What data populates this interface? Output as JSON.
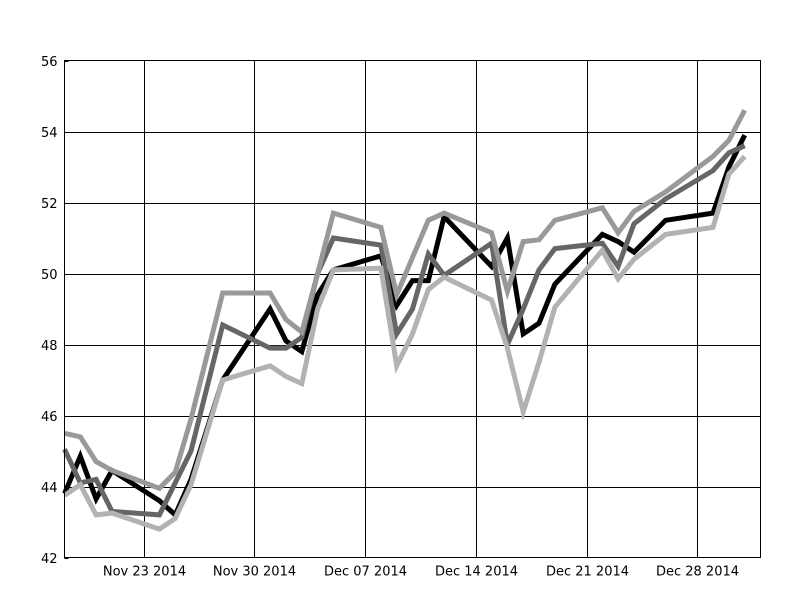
{
  "chart_data": {
    "type": "line",
    "title": "",
    "xlabel": "",
    "ylabel": "",
    "ylim": [
      42,
      56
    ],
    "xlim": [
      "2014-11-18",
      "2015-01-01"
    ],
    "grid": true,
    "legend": "none",
    "yticks": [
      42,
      44,
      46,
      48,
      50,
      52,
      54,
      56
    ],
    "xticks": [
      {
        "date": "2014-11-23",
        "label": "Nov 23 2014"
      },
      {
        "date": "2014-11-30",
        "label": "Nov 30 2014"
      },
      {
        "date": "2014-12-07",
        "label": "Dec 07 2014"
      },
      {
        "date": "2014-12-14",
        "label": "Dec 14 2014"
      },
      {
        "date": "2014-12-21",
        "label": "Dec 21 2014"
      },
      {
        "date": "2014-12-28",
        "label": "Dec 28 2014"
      }
    ],
    "x": [
      "2014-11-18",
      "2014-11-19",
      "2014-11-20",
      "2014-11-21",
      "2014-11-24",
      "2014-11-25",
      "2014-11-26",
      "2014-11-28",
      "2014-12-01",
      "2014-12-02",
      "2014-12-03",
      "2014-12-04",
      "2014-12-05",
      "2014-12-08",
      "2014-12-09",
      "2014-12-10",
      "2014-12-11",
      "2014-12-12",
      "2014-12-15",
      "2014-12-16",
      "2014-12-17",
      "2014-12-18",
      "2014-12-19",
      "2014-12-22",
      "2014-12-23",
      "2014-12-24",
      "2014-12-26",
      "2014-12-29",
      "2014-12-30",
      "2014-12-31"
    ],
    "series": [
      {
        "color": "#000000",
        "values": [
          43.8,
          44.85,
          43.65,
          44.45,
          43.6,
          43.2,
          44.2,
          47.0,
          49.0,
          48.1,
          47.8,
          49.4,
          50.1,
          50.5,
          49.1,
          49.8,
          49.8,
          51.6,
          50.2,
          51.0,
          48.3,
          48.6,
          49.7,
          51.1,
          50.9,
          50.6,
          51.5,
          51.7,
          53.0,
          53.9
        ]
      },
      {
        "color": "#666666",
        "values": [
          45.05,
          44.1,
          44.2,
          43.3,
          43.2,
          44.1,
          45.0,
          48.55,
          47.9,
          47.9,
          48.2,
          50.0,
          51.0,
          50.8,
          48.3,
          49.0,
          50.55,
          49.95,
          50.85,
          48.0,
          49.0,
          50.1,
          50.7,
          50.85,
          50.2,
          51.4,
          52.1,
          52.9,
          53.4,
          53.6
        ]
      },
      {
        "color": "#999999",
        "values": [
          45.5,
          45.4,
          44.7,
          44.45,
          43.95,
          44.4,
          45.9,
          49.45,
          49.45,
          48.7,
          48.35,
          50.0,
          51.7,
          51.3,
          49.4,
          50.45,
          51.5,
          51.7,
          51.15,
          49.5,
          50.9,
          50.95,
          51.5,
          51.85,
          51.15,
          51.75,
          52.3,
          53.3,
          53.75,
          54.6
        ]
      },
      {
        "color": "#b2b2b2",
        "values": [
          43.75,
          44.05,
          43.2,
          43.25,
          42.8,
          43.1,
          44.05,
          47.0,
          47.4,
          47.1,
          46.9,
          49.0,
          50.1,
          50.15,
          47.4,
          48.3,
          49.55,
          49.9,
          49.25,
          47.9,
          46.1,
          47.5,
          49.05,
          50.65,
          49.85,
          50.4,
          51.1,
          51.3,
          52.8,
          53.3
        ]
      }
    ]
  }
}
